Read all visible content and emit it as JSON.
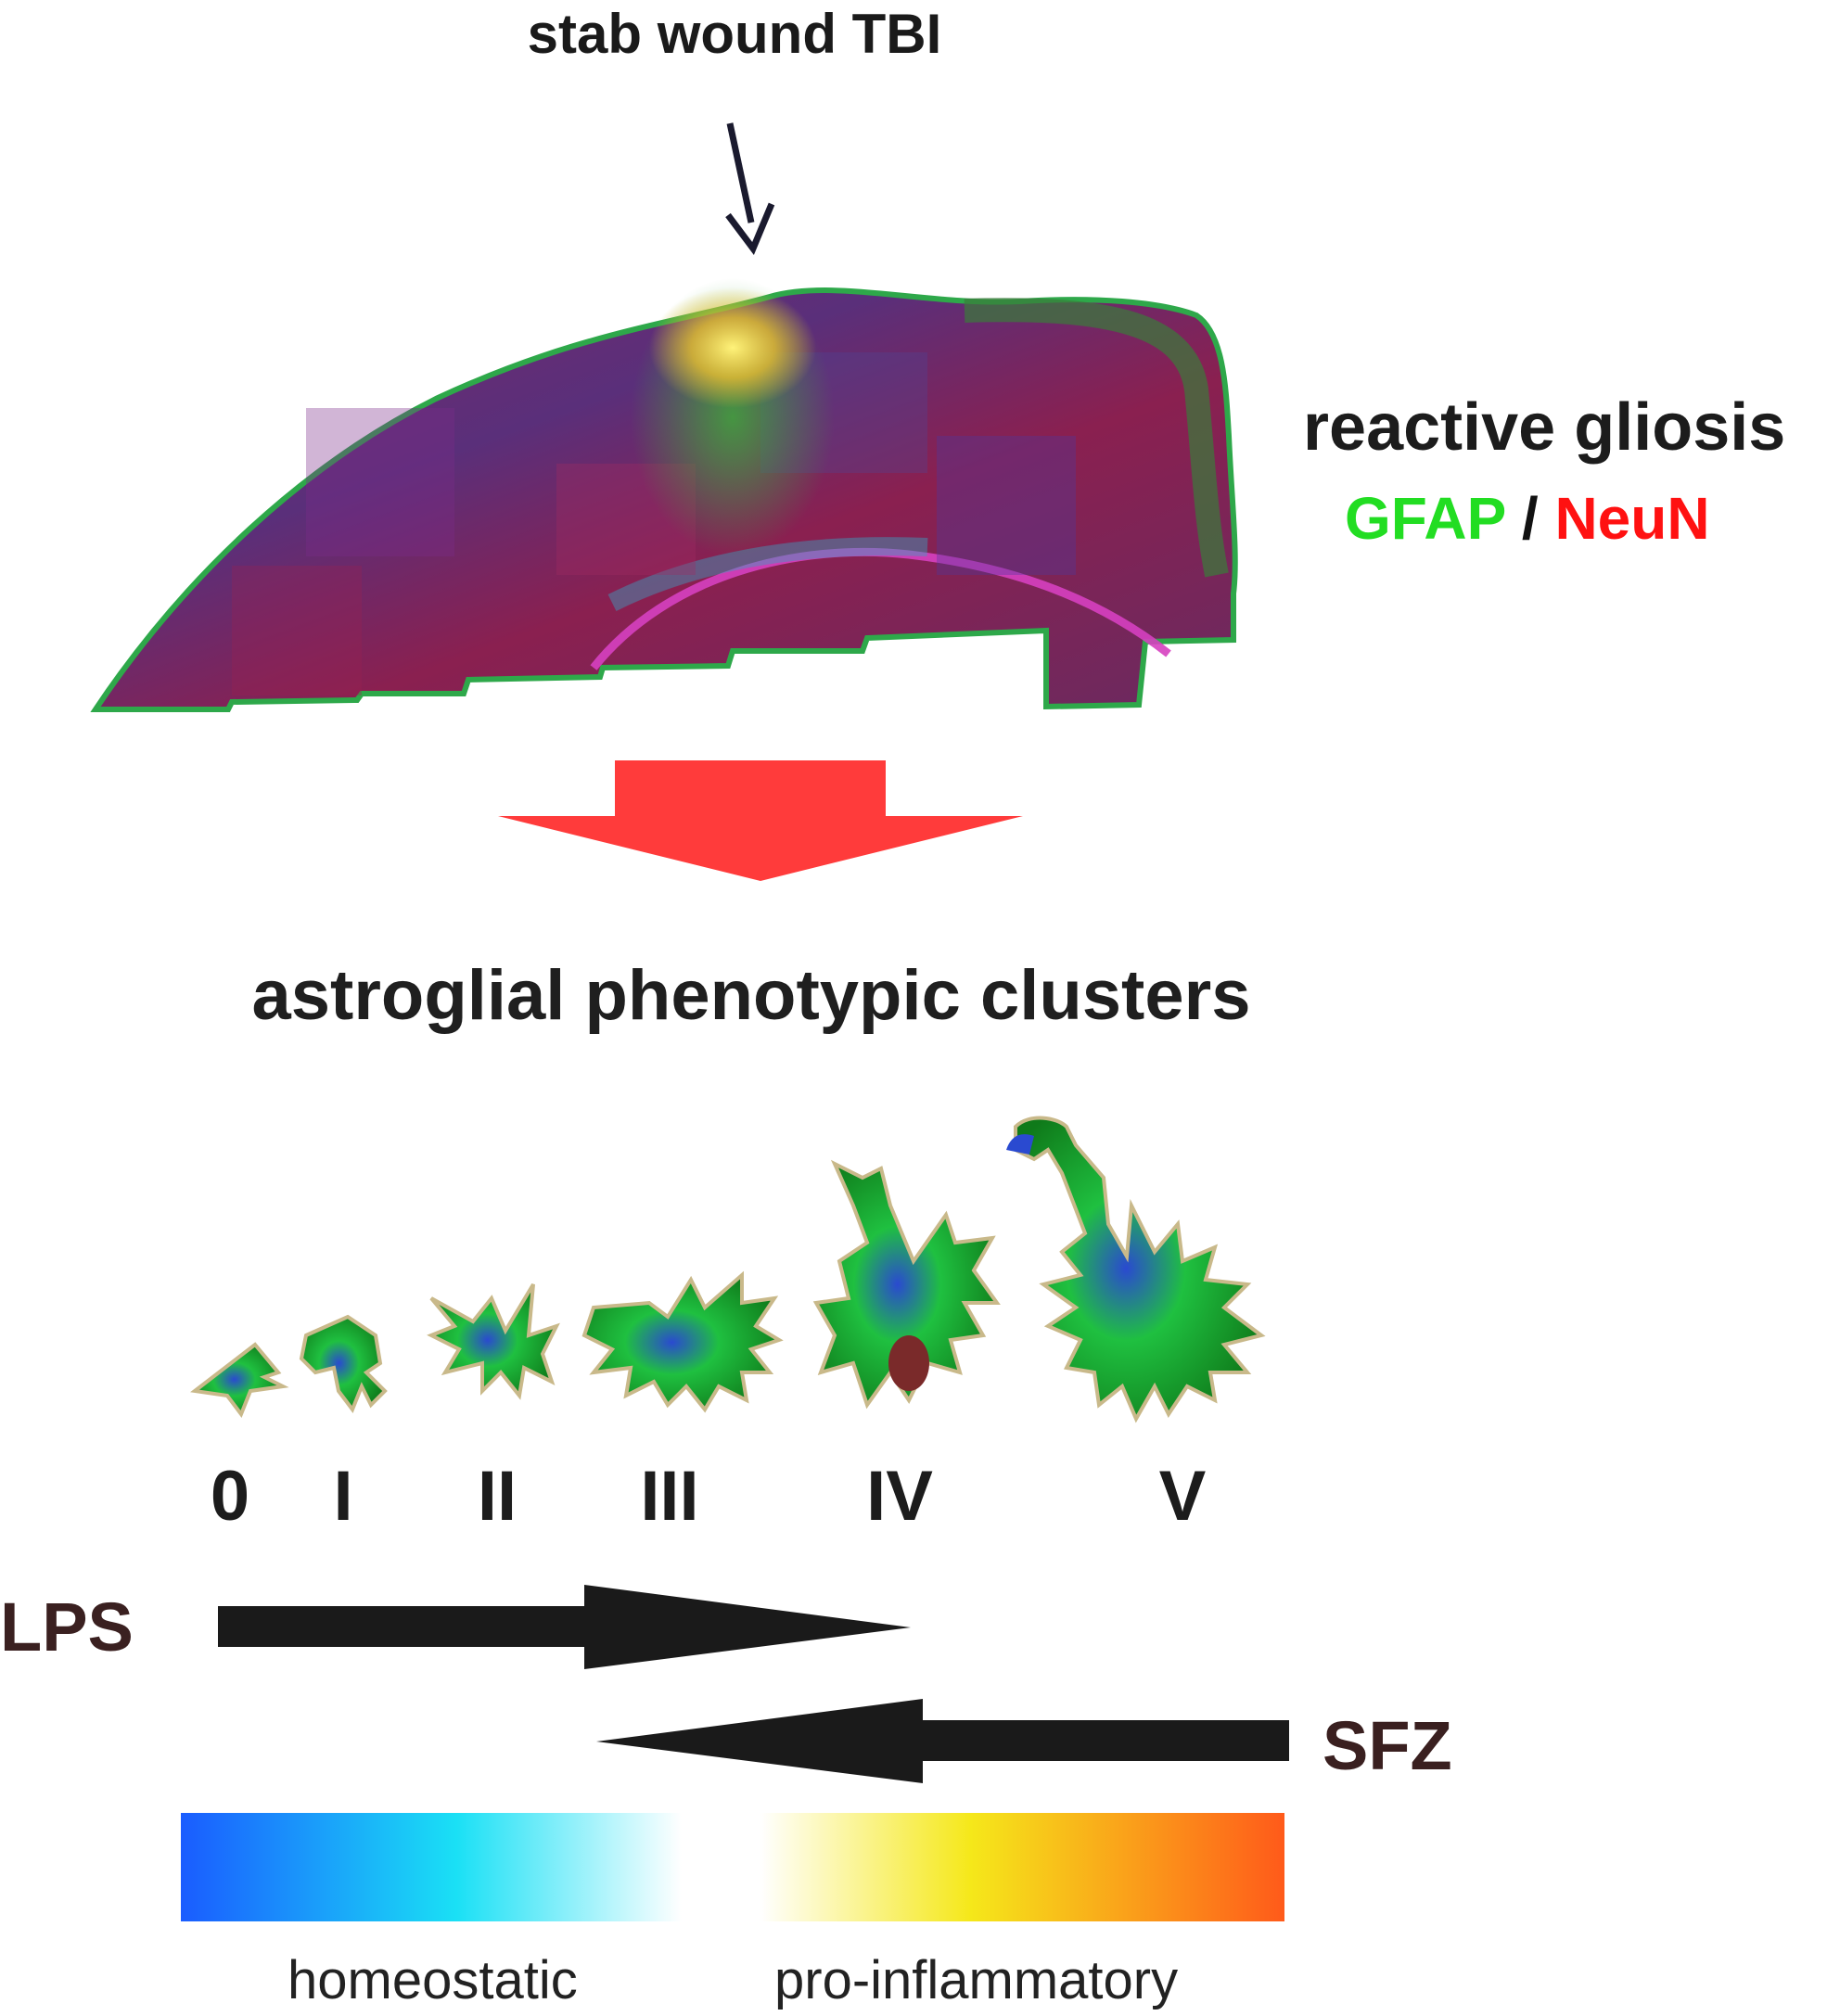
{
  "labels": {
    "top_title": "stab wound TBI",
    "gliosis": "reactive gliosis",
    "stain_gfap": "GFAP",
    "stain_sep": " / ",
    "stain_neun": "NeuN",
    "clusters_title": "astroglial phenotypic clusters",
    "lps": "LPS",
    "sfz": "SFZ",
    "homeostatic": "homeostatic",
    "pro_inflammatory": "pro-inflammatory"
  },
  "clusters": [
    "0",
    "I",
    "II",
    "III",
    "IV",
    "V"
  ],
  "colors": {
    "gfap": "#22dd22",
    "neun": "#ff1111",
    "big_arrow": "#ff3b3b",
    "drug_arrow": "#1a1a1a",
    "drug_label": "#3a2020",
    "gradient_homeostatic": [
      "#1a5cff",
      "#1ae0f5",
      "#ffffff"
    ],
    "gradient_proinflammatory": [
      "#ffffff",
      "#f5e81a",
      "#ff5a1a"
    ]
  }
}
